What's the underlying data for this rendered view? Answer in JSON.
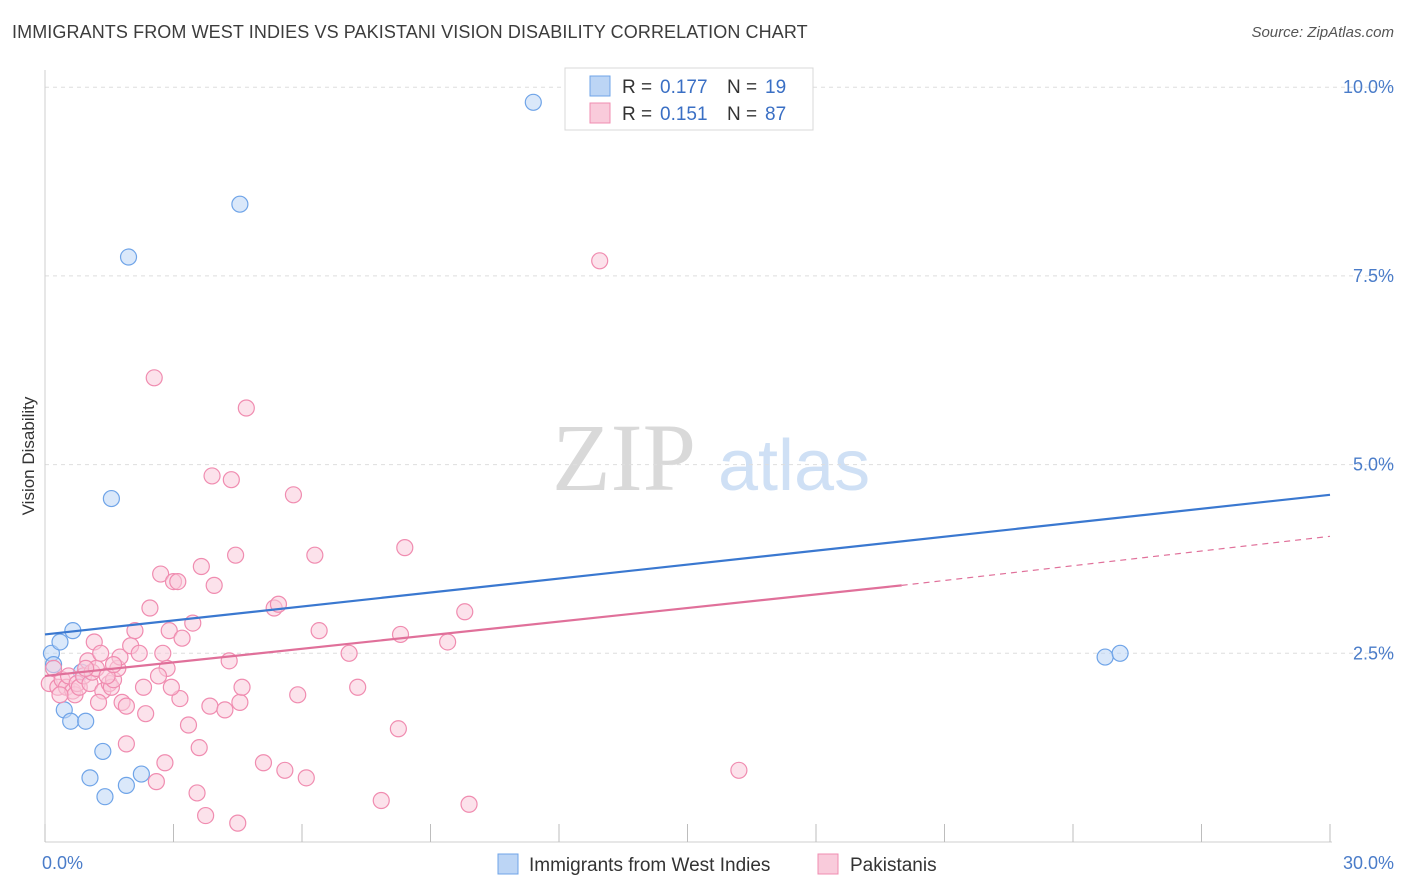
{
  "chart_data": {
    "type": "scatter",
    "title": "IMMIGRANTS FROM WEST INDIES VS PAKISTANI VISION DISABILITY CORRELATION CHART",
    "source": "Source: ZipAtlas.com",
    "xlabel": "",
    "ylabel": "Vision Disability",
    "xlim": [
      0,
      30
    ],
    "ylim": [
      0,
      10.4
    ],
    "x_tick_labels": [
      "0.0%",
      "30.0%"
    ],
    "y_ticks": [
      2.5,
      5.0,
      7.5,
      10.0
    ],
    "y_tick_labels": [
      "2.5%",
      "5.0%",
      "7.5%",
      "10.0%"
    ],
    "watermark": {
      "zip": "ZIP",
      "atlas": "atlas"
    },
    "legend": {
      "r_label": "R =",
      "n_label": "N =",
      "entries": [
        {
          "r": "0.177",
          "n": "19"
        },
        {
          "r": "0.151",
          "n": "87"
        }
      ]
    },
    "series": [
      {
        "name": "Immigrants from West Indies",
        "color": "#6fa4e8",
        "fill": "#bcd5f5",
        "line_color": "#3a78d0",
        "trend": {
          "x0": 0,
          "y0": 2.75,
          "x1": 30,
          "y1": 4.6
        },
        "points": [
          [
            0.15,
            2.5
          ],
          [
            0.2,
            2.35
          ],
          [
            0.35,
            2.65
          ],
          [
            0.65,
            2.8
          ],
          [
            0.45,
            1.75
          ],
          [
            0.6,
            1.6
          ],
          [
            0.95,
            1.6
          ],
          [
            0.85,
            2.25
          ],
          [
            1.35,
            1.2
          ],
          [
            1.05,
            0.85
          ],
          [
            1.4,
            0.6
          ],
          [
            1.9,
            0.75
          ],
          [
            2.25,
            0.9
          ],
          [
            1.55,
            4.55
          ],
          [
            1.95,
            7.75
          ],
          [
            4.55,
            8.45
          ],
          [
            11.4,
            9.8
          ],
          [
            24.75,
            2.45
          ],
          [
            25.1,
            2.5
          ]
        ]
      },
      {
        "name": "Pakistanis",
        "color": "#f08cb0",
        "fill": "#f9cbdb",
        "line_color": "#e0709a",
        "trend": {
          "x0": 0,
          "y0": 2.2,
          "x1": 20,
          "y1": 3.4
        },
        "trend_ext": {
          "x0": 20,
          "y0": 3.4,
          "x1": 30,
          "y1": 4.05
        },
        "points": [
          [
            0.1,
            2.1
          ],
          [
            0.2,
            2.3
          ],
          [
            0.3,
            2.05
          ],
          [
            0.4,
            2.15
          ],
          [
            0.5,
            2.05
          ],
          [
            0.55,
            2.2
          ],
          [
            0.65,
            2.0
          ],
          [
            0.7,
            1.95
          ],
          [
            0.75,
            2.1
          ],
          [
            0.8,
            2.05
          ],
          [
            0.9,
            2.2
          ],
          [
            1.0,
            2.4
          ],
          [
            1.05,
            2.1
          ],
          [
            1.1,
            2.25
          ],
          [
            1.15,
            2.65
          ],
          [
            1.2,
            2.3
          ],
          [
            1.3,
            2.5
          ],
          [
            1.35,
            2.0
          ],
          [
            1.5,
            2.1
          ],
          [
            1.55,
            2.05
          ],
          [
            1.6,
            2.15
          ],
          [
            1.7,
            2.3
          ],
          [
            1.75,
            2.45
          ],
          [
            1.8,
            1.85
          ],
          [
            1.9,
            1.8
          ],
          [
            1.9,
            1.3
          ],
          [
            2.0,
            2.6
          ],
          [
            2.1,
            2.8
          ],
          [
            2.2,
            2.5
          ],
          [
            2.3,
            2.05
          ],
          [
            2.35,
            1.7
          ],
          [
            2.45,
            3.1
          ],
          [
            2.55,
            6.15
          ],
          [
            2.7,
            3.55
          ],
          [
            2.75,
            2.5
          ],
          [
            2.85,
            2.3
          ],
          [
            2.8,
            1.05
          ],
          [
            2.9,
            2.8
          ],
          [
            3.0,
            3.45
          ],
          [
            3.1,
            3.45
          ],
          [
            3.15,
            1.9
          ],
          [
            3.2,
            2.7
          ],
          [
            3.35,
            1.55
          ],
          [
            3.45,
            2.9
          ],
          [
            3.6,
            1.25
          ],
          [
            3.65,
            3.65
          ],
          [
            3.75,
            0.35
          ],
          [
            3.85,
            1.8
          ],
          [
            3.95,
            3.4
          ],
          [
            3.9,
            4.85
          ],
          [
            4.2,
            1.75
          ],
          [
            4.3,
            2.4
          ],
          [
            4.35,
            4.8
          ],
          [
            4.45,
            3.8
          ],
          [
            4.55,
            1.85
          ],
          [
            4.6,
            2.05
          ],
          [
            4.7,
            5.75
          ],
          [
            5.1,
            1.05
          ],
          [
            5.35,
            3.1
          ],
          [
            5.45,
            3.15
          ],
          [
            5.6,
            0.95
          ],
          [
            5.8,
            4.6
          ],
          [
            5.9,
            1.95
          ],
          [
            6.1,
            0.85
          ],
          [
            6.3,
            3.8
          ],
          [
            6.4,
            2.8
          ],
          [
            7.1,
            2.5
          ],
          [
            7.3,
            2.05
          ],
          [
            7.85,
            0.55
          ],
          [
            8.25,
            1.5
          ],
          [
            8.3,
            2.75
          ],
          [
            8.4,
            3.9
          ],
          [
            9.4,
            2.65
          ],
          [
            9.8,
            3.05
          ],
          [
            9.9,
            0.5
          ],
          [
            12.95,
            7.7
          ],
          [
            16.2,
            0.95
          ],
          [
            2.65,
            2.2
          ],
          [
            1.45,
            2.2
          ],
          [
            0.95,
            2.3
          ],
          [
            3.55,
            0.65
          ],
          [
            2.6,
            0.8
          ],
          [
            4.5,
            0.25
          ],
          [
            1.6,
            2.35
          ],
          [
            2.95,
            2.05
          ],
          [
            0.35,
            1.95
          ],
          [
            1.25,
            1.85
          ]
        ]
      }
    ],
    "bottom_legend": [
      "Immigrants from West Indies",
      "Pakistanis"
    ]
  }
}
